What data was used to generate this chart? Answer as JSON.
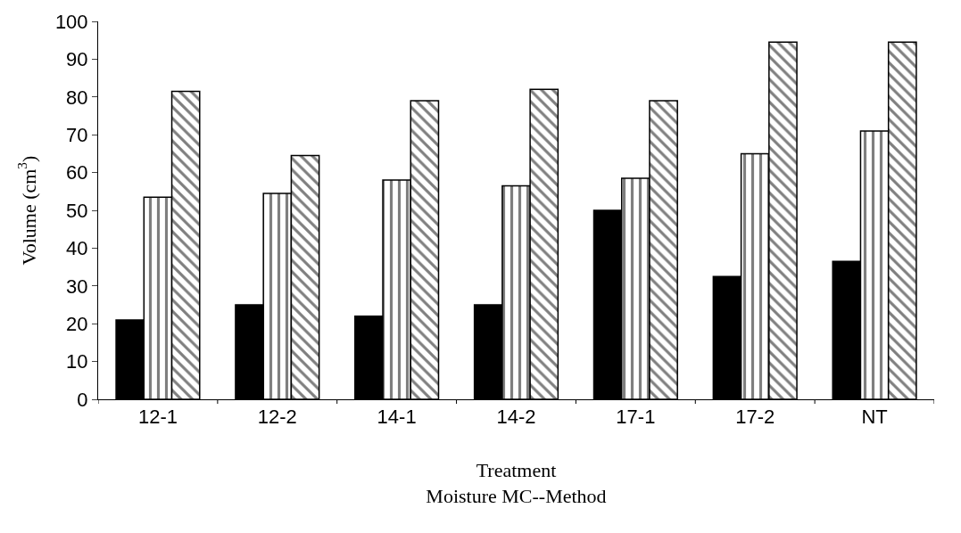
{
  "chart_data": {
    "type": "bar",
    "xlabel": "Treatment\nMoisture MC--Method",
    "ylabel": "Volume (cm$^{3}$)",
    "categories": [
      "12-1",
      "12-2",
      "14-1",
      "14-2",
      "17-1",
      "17-2",
      "NT"
    ],
    "series": [
      {
        "color": "#000000",
        "values": [
          21,
          25,
          22,
          25,
          50,
          32.5,
          36.5
        ]
      },
      {
        "color": "#000000",
        "values": [
          53.5,
          54.5,
          58,
          56.5,
          58.5,
          65,
          71
        ]
      },
      {
        "color": "#000000",
        "values": [
          81.5,
          64.5,
          79,
          82,
          79,
          94.5,
          94.5
        ]
      }
    ],
    "ylim": [
      0,
      100
    ],
    "yticks": [
      0,
      10,
      20,
      30,
      40,
      50,
      60,
      70,
      80,
      90,
      100
    ]
  }
}
